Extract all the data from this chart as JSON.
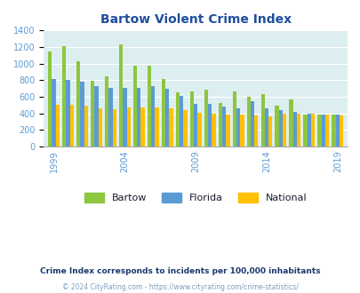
{
  "title": "Bartow Violent Crime Index",
  "years": [
    1999,
    2000,
    2001,
    2002,
    2003,
    2004,
    2005,
    2006,
    2007,
    2008,
    2009,
    2010,
    2011,
    2012,
    2013,
    2014,
    2015,
    2016,
    2017,
    2018,
    2019
  ],
  "bartow": [
    1150,
    1210,
    1030,
    790,
    850,
    1230,
    980,
    970,
    815,
    650,
    660,
    685,
    525,
    665,
    600,
    630,
    495,
    570,
    385,
    390,
    390
  ],
  "florida": [
    810,
    800,
    780,
    725,
    705,
    710,
    705,
    730,
    695,
    615,
    510,
    515,
    485,
    455,
    545,
    455,
    440,
    415,
    400,
    390,
    385
  ],
  "national": [
    505,
    505,
    490,
    455,
    450,
    470,
    470,
    470,
    455,
    435,
    405,
    395,
    390,
    385,
    375,
    365,
    395,
    400,
    395,
    385,
    375
  ],
  "bar_colors": [
    "#8dc63f",
    "#5b9bd5",
    "#ffc000"
  ],
  "plot_bg": "#ddeef0",
  "ylim": [
    0,
    1400
  ],
  "yticks": [
    0,
    200,
    400,
    600,
    800,
    1000,
    1200,
    1400
  ],
  "xtick_years": [
    1999,
    2004,
    2009,
    2014,
    2019
  ],
  "legend_labels": [
    "Bartow",
    "Florida",
    "National"
  ],
  "footnote1": "Crime Index corresponds to incidents per 100,000 inhabitants",
  "footnote2": "© 2024 CityRating.com - https://www.cityrating.com/crime-statistics/",
  "title_color": "#1f4e9e",
  "footnote1_color": "#1a3a6e",
  "footnote2_color": "#7f9fbf",
  "tick_color": "#5b9bd5",
  "legend_text_color": "#1a1a2e",
  "grid_color": "#ffffff",
  "bar_width": 0.27,
  "figsize": [
    4.06,
    3.3
  ],
  "dpi": 100
}
